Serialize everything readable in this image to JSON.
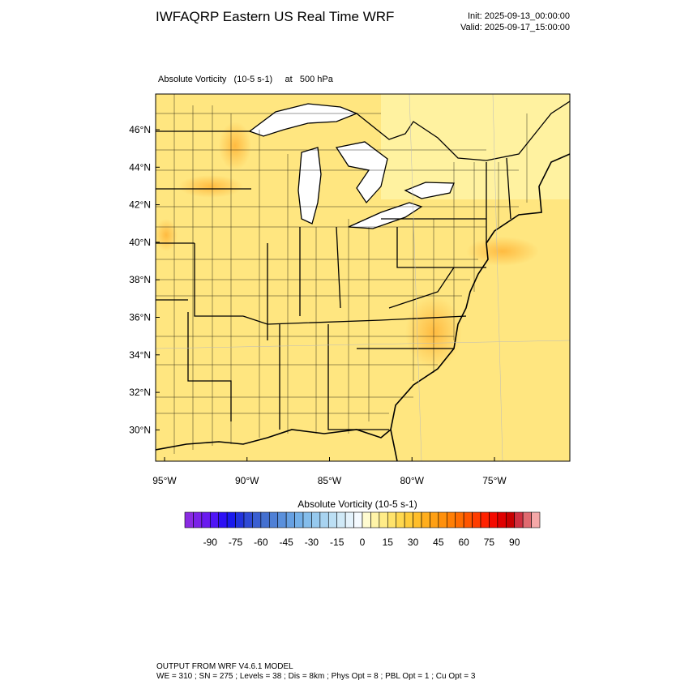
{
  "header": {
    "title": "IWFAQRP Eastern US Real Time WRF",
    "init": "Init: 2025-09-13_00:00:00",
    "valid": "Valid: 2025-09-17_15:00:00"
  },
  "plot": {
    "subtitle": "Absolute Vorticity   (10-5 s-1)     at   500 hPa",
    "lat_ticks": [
      {
        "value": 46,
        "label": "46°N"
      },
      {
        "value": 44,
        "label": "44°N"
      },
      {
        "value": 42,
        "label": "42°N"
      },
      {
        "value": 40,
        "label": "40°N"
      },
      {
        "value": 38,
        "label": "38°N"
      },
      {
        "value": 36,
        "label": "36°N"
      },
      {
        "value": 34,
        "label": "34°N"
      },
      {
        "value": 32,
        "label": "32°N"
      },
      {
        "value": 30,
        "label": "30°N"
      }
    ],
    "lon_ticks": [
      {
        "value": 95,
        "label": "95°W"
      },
      {
        "value": 90,
        "label": "90°W"
      },
      {
        "value": 85,
        "label": "85°W"
      },
      {
        "value": 80,
        "label": "80°W"
      },
      {
        "value": 75,
        "label": "75°W"
      }
    ]
  },
  "colorbar": {
    "title": "Absolute Vorticity  (10-5 s-1)",
    "lim": [
      -105,
      105
    ],
    "labels": [
      -90,
      -75,
      -60,
      -45,
      -30,
      -15,
      0,
      15,
      30,
      45,
      60,
      75,
      90
    ],
    "colors": [
      "#8a2be2",
      "#7b22e8",
      "#6a1aef",
      "#4f15f5",
      "#2d10f5",
      "#1a1aee",
      "#2233dd",
      "#2f4ad6",
      "#3a5fd2",
      "#4470d0",
      "#4f80d6",
      "#5a90dc",
      "#66a0e2",
      "#74b0e8",
      "#84bdeb",
      "#96c9ee",
      "#a8d3f0",
      "#bcdff4",
      "#d0e9f7",
      "#e4f2fb",
      "#f5faff",
      "#fffbd0",
      "#fff4a8",
      "#ffec88",
      "#ffe36b",
      "#ffd84f",
      "#ffcc3a",
      "#ffbe2a",
      "#ffae1e",
      "#ffa014",
      "#ff900c",
      "#ff7f06",
      "#ff6c02",
      "#ff5500",
      "#ff3d00",
      "#ff2200",
      "#f50a00",
      "#e00000",
      "#c80000",
      "#d03040",
      "#e06a70",
      "#f5a8a8"
    ]
  },
  "footer": {
    "line1": "OUTPUT FROM WRF V4.6.1 MODEL",
    "line2": "WE = 310 ; SN = 275 ; Levels = 38 ; Dis = 8km ; Phys Opt = 8 ; PBL Opt = 1 ; Cu Opt = 3"
  }
}
